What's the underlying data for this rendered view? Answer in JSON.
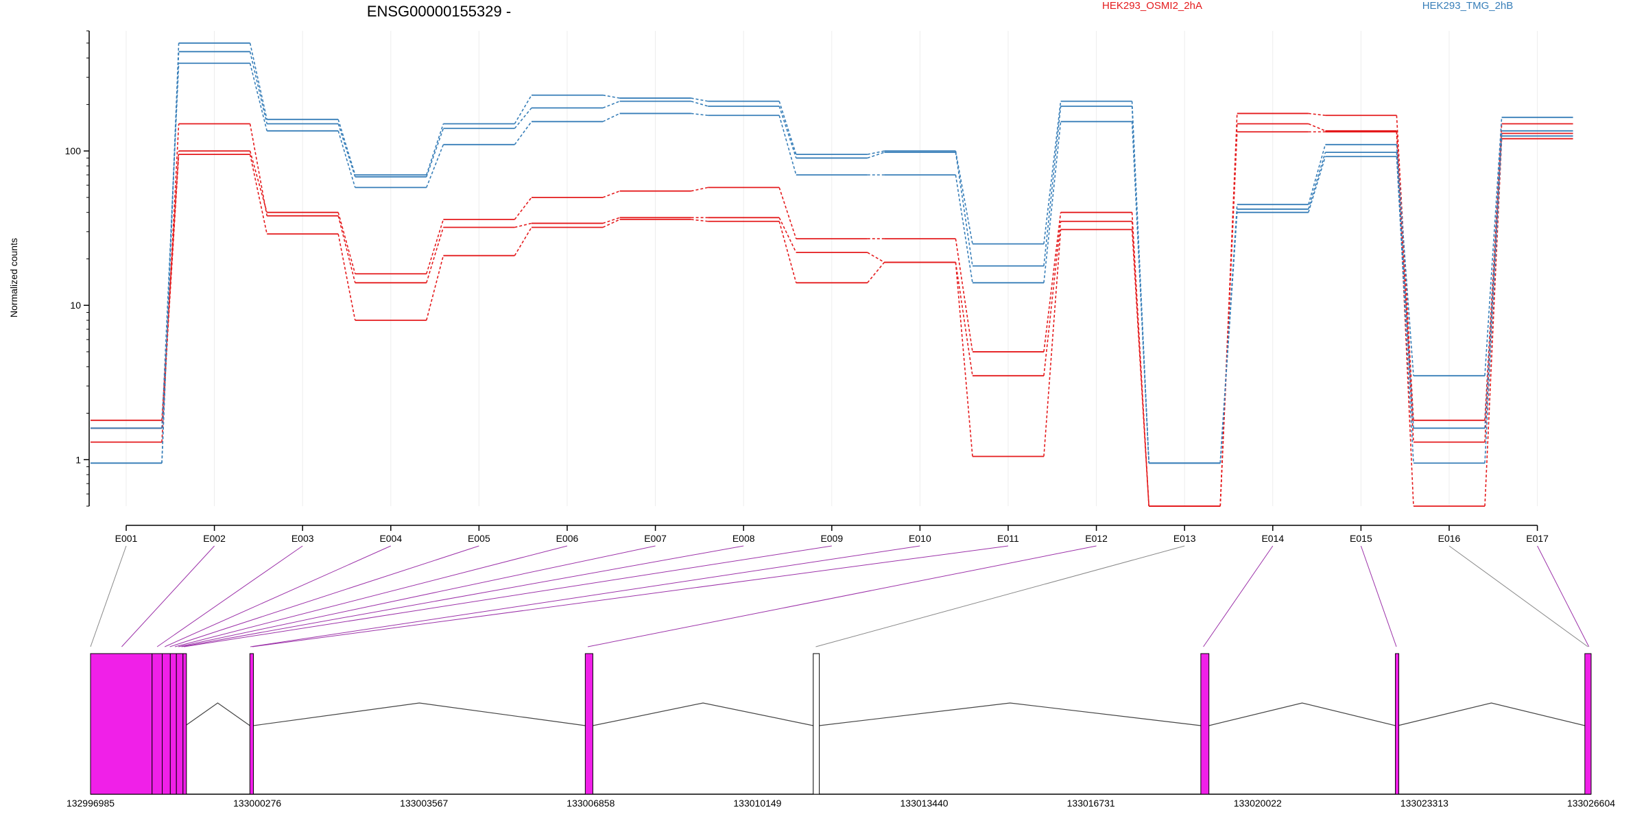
{
  "chart_data": {
    "type": "line",
    "title": "ENSG00000155329 -",
    "xlabel": "",
    "ylabel": "Normalized counts",
    "y_scale": "log",
    "ylim": [
      0.5,
      600
    ],
    "y_ticks": [
      1,
      10,
      100
    ],
    "y_tick_labels": [
      "1",
      "10",
      "100"
    ],
    "grid": "vertical",
    "categories": [
      "E001",
      "E002",
      "E003",
      "E004",
      "E005",
      "E006",
      "E007",
      "E008",
      "E009",
      "E010",
      "E011",
      "E012",
      "E013",
      "E014",
      "E015",
      "E016",
      "E017"
    ],
    "legend": [
      {
        "label": "HEK293_OSMI2_2hA",
        "color": "#e41a1c",
        "position": "top-center"
      },
      {
        "label": "HEK293_TMG_2hB",
        "color": "#377eb8",
        "position": "top-right"
      }
    ],
    "series": [
      {
        "group": "red",
        "color": "#e41a1c",
        "values": [
          1.8,
          100,
          40,
          16,
          36,
          50,
          55,
          58,
          27,
          27,
          5,
          40,
          0.5,
          175,
          170,
          1.8,
          150
        ]
      },
      {
        "group": "red",
        "color": "#e41a1c",
        "values": [
          1.3,
          150,
          38,
          14,
          32,
          34,
          37,
          37,
          22,
          19,
          3.5,
          35,
          0.5,
          150,
          135,
          1.3,
          130
        ]
      },
      {
        "group": "red",
        "color": "#e41a1c",
        "values": [
          1.6,
          95,
          29,
          8,
          21,
          32,
          36,
          35,
          14,
          19,
          1.05,
          31,
          0.5,
          133,
          133,
          0.5,
          120
        ]
      },
      {
        "group": "blue",
        "color": "#377eb8",
        "values": [
          0.95,
          500,
          160,
          70,
          150,
          230,
          220,
          210,
          95,
          100,
          25,
          210,
          0.95,
          45,
          110,
          3.5,
          165
        ]
      },
      {
        "group": "blue",
        "color": "#377eb8",
        "values": [
          0.95,
          440,
          150,
          68,
          140,
          190,
          210,
          195,
          90,
          98,
          18,
          195,
          0.95,
          42,
          98,
          1.6,
          135
        ]
      },
      {
        "group": "blue",
        "color": "#377eb8",
        "values": [
          1.6,
          370,
          135,
          58,
          110,
          155,
          175,
          170,
          70,
          70,
          14,
          155,
          0.95,
          40,
          92,
          0.95,
          125
        ]
      }
    ],
    "gene_model": {
      "coord_ticks": [
        "132996985",
        "133000276",
        "133003567",
        "133006858",
        "133010149",
        "133013440",
        "133016731",
        "133020022",
        "133023313",
        "133026604"
      ],
      "coord_range": [
        132996985,
        133026604
      ],
      "exons": [
        {
          "start": 132996985,
          "end": 132998200,
          "filled": true
        },
        {
          "start": 132998200,
          "end": 132998400,
          "filled": true
        },
        {
          "start": 132998400,
          "end": 132998560,
          "filled": true
        },
        {
          "start": 132998560,
          "end": 132998680,
          "filled": true
        },
        {
          "start": 132998680,
          "end": 132998810,
          "filled": true
        },
        {
          "start": 132998810,
          "end": 132998860,
          "filled": true
        },
        {
          "start": 133000130,
          "end": 133000200,
          "filled": true
        },
        {
          "start": 133006750,
          "end": 133006900,
          "filled": true
        },
        {
          "start": 133011250,
          "end": 133011370,
          "filled": false
        },
        {
          "start": 133018900,
          "end": 133019060,
          "filled": true
        },
        {
          "start": 133022740,
          "end": 133022790,
          "filled": true
        },
        {
          "start": 133026480,
          "end": 133026604,
          "filled": true
        }
      ],
      "exon_mapping": [
        {
          "bin": "E001",
          "pos": 132996985,
          "color": "#888888"
        },
        {
          "bin": "E002",
          "pos": 132997600,
          "color": "#9b30a8"
        },
        {
          "bin": "E003",
          "pos": 132998300,
          "color": "#9b30a8"
        },
        {
          "bin": "E004",
          "pos": 132998450,
          "color": "#9b30a8"
        },
        {
          "bin": "E005",
          "pos": 132998550,
          "color": "#9b30a8"
        },
        {
          "bin": "E006",
          "pos": 132998650,
          "color": "#9b30a8"
        },
        {
          "bin": "E007",
          "pos": 132998720,
          "color": "#9b30a8"
        },
        {
          "bin": "E008",
          "pos": 132998780,
          "color": "#9b30a8"
        },
        {
          "bin": "E009",
          "pos": 132998830,
          "color": "#9b30a8"
        },
        {
          "bin": "E010",
          "pos": 133000140,
          "color": "#9b30a8"
        },
        {
          "bin": "E011",
          "pos": 133000180,
          "color": "#9b30a8"
        },
        {
          "bin": "E012",
          "pos": 133006800,
          "color": "#9b30a8"
        },
        {
          "bin": "E013",
          "pos": 133011300,
          "color": "#888888"
        },
        {
          "bin": "E014",
          "pos": 133018950,
          "color": "#9b30a8"
        },
        {
          "bin": "E015",
          "pos": 133022760,
          "color": "#9b30a8"
        },
        {
          "bin": "E016",
          "pos": 133026540,
          "color": "#888888"
        },
        {
          "bin": "E017",
          "pos": 133026560,
          "color": "#9b30a8"
        }
      ],
      "exon_fill": "#f020e8"
    }
  }
}
